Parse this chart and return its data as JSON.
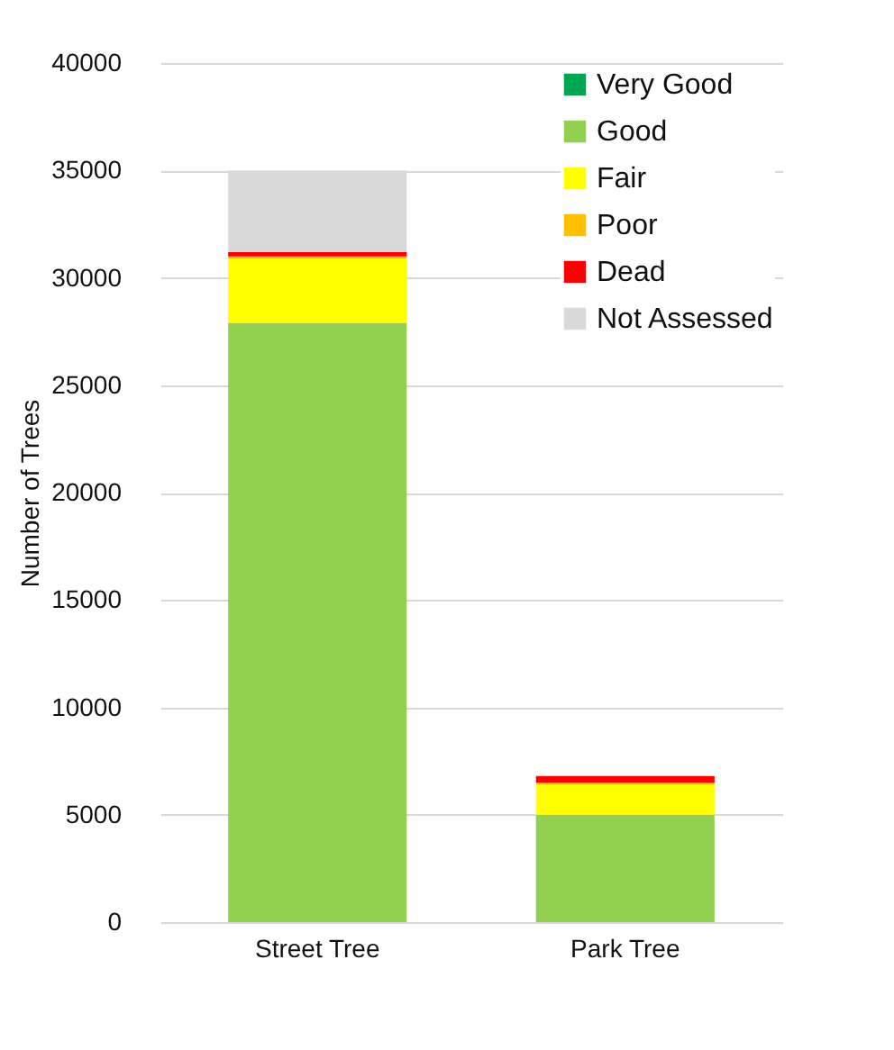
{
  "chart_data": {
    "type": "bar",
    "stacked": true,
    "ylabel": "Number of Trees",
    "categories": [
      "Street Tree",
      "Park Tree"
    ],
    "series": [
      {
        "name": "Very Good",
        "color": "#00a651",
        "values": [
          0,
          0
        ]
      },
      {
        "name": "Good",
        "color": "#92d050",
        "values": [
          27900,
          5000
        ]
      },
      {
        "name": "Fair",
        "color": "#ffff00",
        "values": [
          3000,
          1400
        ]
      },
      {
        "name": "Poor",
        "color": "#ffc000",
        "values": [
          100,
          100
        ]
      },
      {
        "name": "Dead",
        "color": "#ff0000",
        "values": [
          200,
          300
        ]
      },
      {
        "name": "Not Assessed",
        "color": "#d9d9d9",
        "values": [
          3800,
          0
        ]
      }
    ],
    "ylim": [
      0,
      40000
    ],
    "yticks": [
      0,
      5000,
      10000,
      15000,
      20000,
      25000,
      30000,
      35000,
      40000
    ],
    "grid": "y",
    "legend": "top right"
  }
}
